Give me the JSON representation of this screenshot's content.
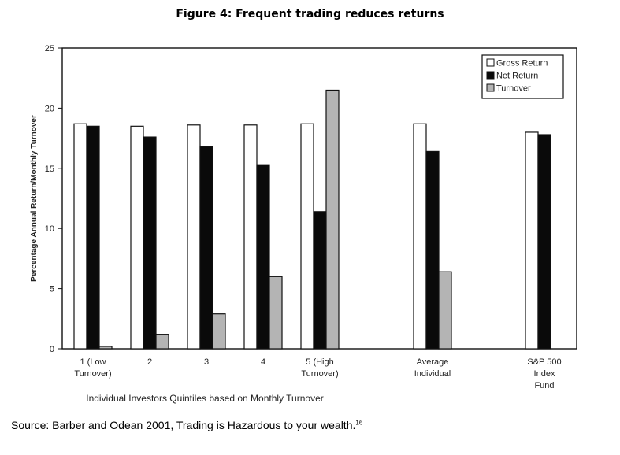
{
  "page": {
    "title": "Figure 4: Frequent trading reduces returns",
    "source": "Source: Barber and Odean 2001, Trading is Hazardous to your wealth.",
    "source_footnote": "16"
  },
  "chart_data": {
    "type": "bar",
    "ylabel": "Percentage Annual Return/Monthly Turnover",
    "xlabel": "Individual Investors Quintiles based on Monthly Turnover",
    "ylim": [
      0,
      25
    ],
    "yticks": [
      0,
      5,
      10,
      15,
      20,
      25
    ],
    "legend_position": "top-right",
    "grid": false,
    "categories": [
      [
        "1 (Low",
        "Turnover)"
      ],
      [
        "2"
      ],
      [
        "3"
      ],
      [
        "4"
      ],
      [
        "5 (High",
        "Turnover)"
      ],
      [
        "Average",
        "Individual"
      ],
      [
        "S&P 500",
        "Index",
        "Fund"
      ]
    ],
    "series": [
      {
        "name": "Gross Return",
        "color": "#ffffff",
        "values": [
          18.7,
          18.5,
          18.6,
          18.6,
          18.7,
          18.7,
          18.0
        ]
      },
      {
        "name": "Net Return",
        "color": "#0a0a0a",
        "values": [
          18.5,
          17.6,
          16.8,
          15.3,
          11.4,
          16.4,
          17.8
        ]
      },
      {
        "name": "Turnover",
        "color": "#b4b4b4",
        "values": [
          0.2,
          1.2,
          2.9,
          6.0,
          21.5,
          6.4,
          null
        ]
      }
    ]
  }
}
